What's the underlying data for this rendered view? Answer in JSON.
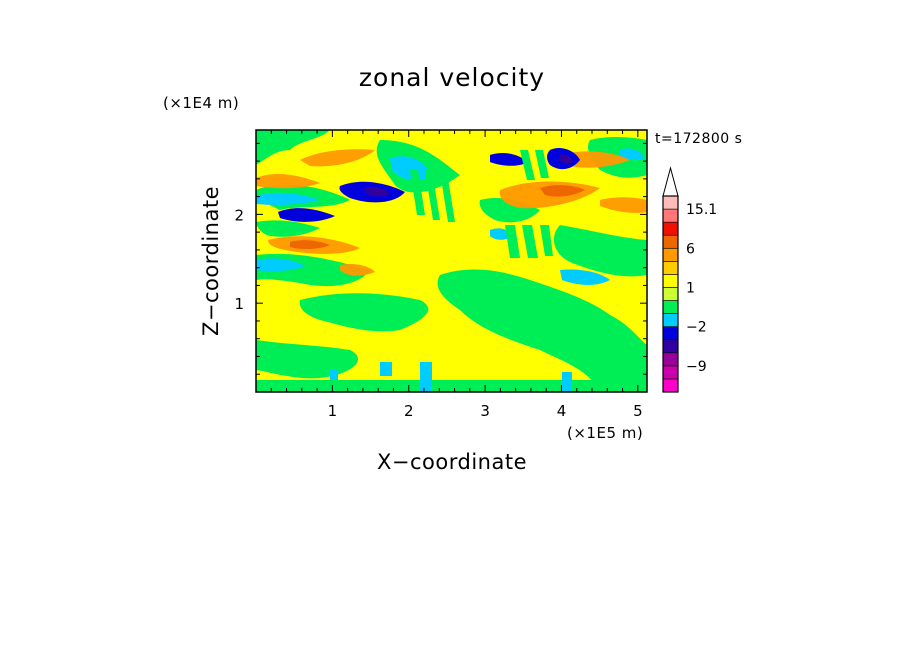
{
  "chart_data": {
    "type": "heatmap",
    "title": "zonal velocity",
    "xlabel": "X−coordinate",
    "ylabel": "Z−coordinate",
    "x_unit": "(×1E5 m)",
    "y_unit": "(×1E4 m)",
    "time_label": "t=172800 s",
    "xlim": [
      0,
      5.12
    ],
    "ylim": [
      0,
      2.95
    ],
    "x_ticks": [
      "1",
      "2",
      "3",
      "4",
      "5"
    ],
    "y_ticks": [
      "1",
      "2"
    ],
    "x_tick_values": [
      1,
      2,
      3,
      4,
      5
    ],
    "y_tick_values": [
      1,
      2
    ],
    "colorbar": {
      "levels": [
        {
          "color": "#ff00cc",
          "range": "< -12"
        },
        {
          "color": "#cc00aa",
          "range": "-12 to -9"
        },
        {
          "color": "#990099",
          "range": "-9 to -6"
        },
        {
          "color": "#3300a0",
          "range": "-6 to -4"
        },
        {
          "color": "#0000dd",
          "range": "-4 to -2"
        },
        {
          "color": "#00ccff",
          "range": "-2 to -1"
        },
        {
          "color": "#00ee55",
          "range": "-1 to 0"
        },
        {
          "color": "#ccff33",
          "range": "0 to 1"
        },
        {
          "color": "#ffff00",
          "range": "1 to 2"
        },
        {
          "color": "#ffcc00",
          "range": "2 to 3"
        },
        {
          "color": "#ff9900",
          "range": "3 to 6"
        },
        {
          "color": "#ee6600",
          "range": "6 to 9"
        },
        {
          "color": "#ee1100",
          "range": "9 to 12"
        },
        {
          "color": "#ff7777",
          "range": "12 to 15.1"
        },
        {
          "color": "#ffbbbb",
          "range": "> 15.1"
        }
      ],
      "tick_labels": [
        "15.1",
        "6",
        "1",
        "−2",
        "−9"
      ]
    },
    "regions": [
      {
        "level": "green",
        "description": "broad background band near surface and mid-levels"
      },
      {
        "level": "yellow",
        "description": "dominant background across domain"
      },
      {
        "level": "orange",
        "description": "positive velocity bands around z=2.0-2.6"
      },
      {
        "level": "blue",
        "description": "negative velocity cores near x=1.5, z=2.3 and x=4.0, z=2.6"
      }
    ]
  }
}
